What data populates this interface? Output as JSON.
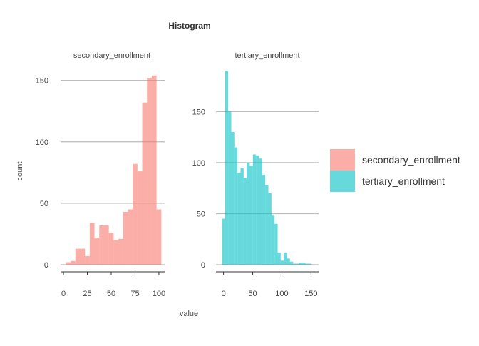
{
  "chart_data": {
    "type": "bar",
    "title": "Histogram",
    "xlabel": "value",
    "ylabel": "count",
    "grid": true,
    "legend_position": "right",
    "legend": [
      {
        "name": "secondary_enrollment",
        "color": "#F8766D"
      },
      {
        "name": "tertiary_enrollment",
        "color": "#00BFC4"
      }
    ],
    "facets": [
      {
        "strip": "secondary_enrollment",
        "color": "#F8766D",
        "bin_width": 5,
        "xlim": [
          -3,
          106
        ],
        "ylim": [
          0,
          162
        ],
        "x_ticks": [
          0,
          25,
          50,
          75,
          100
        ],
        "x_tick_labels": [
          "0",
          "25",
          "50",
          "75",
          "100"
        ],
        "y_ticks": [
          0,
          50,
          100,
          150
        ],
        "y_tick_labels": [
          "0",
          "50",
          "100",
          "150"
        ],
        "bin_centers": [
          5,
          10,
          15,
          20,
          25,
          30,
          35,
          40,
          45,
          50,
          55,
          60,
          65,
          70,
          75,
          80,
          85,
          90,
          95,
          100
        ],
        "counts": [
          2,
          3,
          13,
          13,
          7,
          34,
          22,
          32,
          32,
          26,
          20,
          21,
          43,
          45,
          82,
          76,
          132,
          152,
          154,
          45
        ]
      },
      {
        "strip": "tertiary_enrollment",
        "color": "#00BFC4",
        "bin_width": 5.3,
        "xlim": [
          -13,
          163
        ],
        "ylim": [
          0,
          195
        ],
        "x_ticks": [
          0,
          50,
          100,
          150
        ],
        "x_tick_labels": [
          "0",
          "50",
          "100",
          "150"
        ],
        "y_ticks": [
          0,
          50,
          100,
          150
        ],
        "y_tick_labels": [
          "0",
          "50",
          "100",
          "150"
        ],
        "bin_centers": [
          0,
          5.3,
          10.6,
          15.9,
          21.2,
          26.5,
          31.8,
          37.1,
          42.4,
          47.7,
          53,
          58.3,
          63.6,
          68.9,
          74.2,
          79.5,
          84.8,
          90.1,
          95.4,
          100.7,
          106,
          111.3,
          116.6,
          121.9,
          127.2,
          132.5,
          137.8,
          143.1,
          148.4
        ],
        "counts": [
          45,
          190,
          150,
          130,
          115,
          90,
          95,
          85,
          100,
          97,
          108,
          107,
          104,
          88,
          78,
          70,
          48,
          40,
          12,
          4,
          12,
          6,
          3,
          1,
          1,
          2,
          2,
          1,
          1
        ]
      }
    ]
  }
}
